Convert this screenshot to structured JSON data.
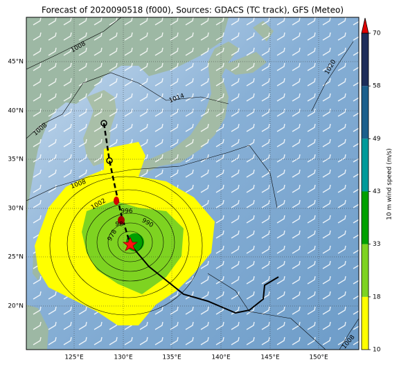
{
  "title": "Forecast of 2020090518 (f000), Sources: GDACS (TC track), GFS (Meteo)",
  "map": {
    "lon_labels": [
      "125°E",
      "130°E",
      "135°E",
      "140°E",
      "145°E",
      "150°E"
    ],
    "lat_labels": [
      "45°N",
      "40°N",
      "35°N",
      "30°N",
      "25°N",
      "20°N"
    ],
    "isobar_labels": [
      "1008",
      "1014",
      "1020",
      "1008",
      "1008",
      "1002",
      "996",
      "990",
      "98",
      "978",
      "1008"
    ]
  },
  "colorbar": {
    "label": "10 m wind speed (m/s)",
    "bounds": [
      10,
      18,
      33,
      43,
      49,
      58,
      70
    ],
    "colors": [
      "#ffff00",
      "#7ed321",
      "#00a000",
      "#009a9a",
      "#1c5f8c",
      "#1e2d5a"
    ],
    "extend_color": "#e00000"
  }
}
